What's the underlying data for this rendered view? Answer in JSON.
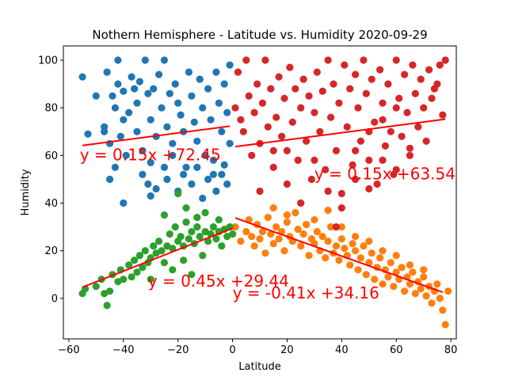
{
  "chart_data": {
    "type": "scatter",
    "title": "Nothern Hemisphere - Latitude vs. Humidity 2020-09-29",
    "xlabel": "Latitude",
    "ylabel": "Humidity",
    "xlim": [
      -62,
      82
    ],
    "ylim": [
      -17,
      106
    ],
    "x_ticks": [
      -60,
      -40,
      -20,
      0,
      20,
      40,
      60,
      80
    ],
    "y_ticks": [
      0,
      20,
      40,
      60,
      80,
      100
    ],
    "grid": false,
    "series": [
      {
        "color": "#1f77b4",
        "points": [
          [
            -55,
            93
          ],
          [
            -53,
            69
          ],
          [
            -50,
            85
          ],
          [
            -47,
            72
          ],
          [
            -47,
            70
          ],
          [
            -46,
            95
          ],
          [
            -45,
            65
          ],
          [
            -44,
            85
          ],
          [
            -43,
            80
          ],
          [
            -42,
            100
          ],
          [
            -42,
            90
          ],
          [
            -41,
            68
          ],
          [
            -40,
            87
          ],
          [
            -40,
            75
          ],
          [
            -39,
            60
          ],
          [
            -38,
            78
          ],
          [
            -37,
            93
          ],
          [
            -36,
            88
          ],
          [
            -35,
            82
          ],
          [
            -35,
            70
          ],
          [
            -34,
            91
          ],
          [
            -33,
            62
          ],
          [
            -32,
            100
          ],
          [
            -31,
            86
          ],
          [
            -30,
            75
          ],
          [
            -30,
            57
          ],
          [
            -29,
            88
          ],
          [
            -28,
            68
          ],
          [
            -27,
            94
          ],
          [
            -26,
            80
          ],
          [
            -25,
            100
          ],
          [
            -24,
            72
          ],
          [
            -23,
            86
          ],
          [
            -22,
            65
          ],
          [
            -21,
            90
          ],
          [
            -20,
            82
          ],
          [
            -19,
            77
          ],
          [
            -18,
            70
          ],
          [
            -17,
            55
          ],
          [
            -16,
            95
          ],
          [
            -15,
            85
          ],
          [
            -14,
            74
          ],
          [
            -13,
            66
          ],
          [
            -12,
            92
          ],
          [
            -11,
            80
          ],
          [
            -10,
            60
          ],
          [
            -9,
            88
          ],
          [
            -8,
            75
          ],
          [
            -7,
            52
          ],
          [
            -6,
            95
          ],
          [
            -5,
            82
          ],
          [
            -4,
            70
          ],
          [
            -3,
            90
          ],
          [
            -2,
            78
          ],
          [
            -1,
            65
          ],
          [
            -1,
            98
          ],
          [
            -45,
            50
          ],
          [
            -43,
            55
          ],
          [
            -40,
            40
          ],
          [
            -33,
            52
          ],
          [
            -31,
            48
          ],
          [
            -30,
            43
          ],
          [
            -28,
            46
          ],
          [
            -25,
            55
          ],
          [
            -24,
            50
          ],
          [
            -22,
            60
          ],
          [
            -20,
            45
          ],
          [
            -18,
            52
          ],
          [
            -15,
            48
          ],
          [
            -13,
            55
          ],
          [
            -11,
            42
          ],
          [
            -9,
            50
          ],
          [
            -7,
            58
          ],
          [
            -6,
            45
          ],
          [
            -4,
            52
          ],
          [
            -3,
            56
          ],
          [
            -2,
            48
          ]
        ]
      },
      {
        "color": "#ff7f0e",
        "points": [
          [
            1,
            30
          ],
          [
            3,
            24
          ],
          [
            5,
            28
          ],
          [
            6,
            33
          ],
          [
            7,
            26
          ],
          [
            8,
            22
          ],
          [
            9,
            31
          ],
          [
            10,
            25
          ],
          [
            11,
            28
          ],
          [
            12,
            19
          ],
          [
            13,
            34
          ],
          [
            14,
            27
          ],
          [
            15,
            23
          ],
          [
            16,
            30
          ],
          [
            17,
            25
          ],
          [
            18,
            28
          ],
          [
            19,
            20
          ],
          [
            20,
            32
          ],
          [
            21,
            26
          ],
          [
            22,
            24
          ],
          [
            23,
            36
          ],
          [
            24,
            29
          ],
          [
            25,
            22
          ],
          [
            26,
            27
          ],
          [
            27,
            31
          ],
          [
            28,
            18
          ],
          [
            29,
            25
          ],
          [
            30,
            23
          ],
          [
            31,
            28
          ],
          [
            32,
            20
          ],
          [
            33,
            26
          ],
          [
            34,
            17
          ],
          [
            35,
            24
          ],
          [
            36,
            30
          ],
          [
            37,
            19
          ],
          [
            38,
            22
          ],
          [
            39,
            16
          ],
          [
            40,
            25
          ],
          [
            41,
            21
          ],
          [
            42,
            18
          ],
          [
            43,
            14
          ],
          [
            44,
            23
          ],
          [
            45,
            20
          ],
          [
            46,
            12
          ],
          [
            47,
            17
          ],
          [
            48,
            22
          ],
          [
            49,
            10
          ],
          [
            50,
            15
          ],
          [
            51,
            19
          ],
          [
            52,
            8
          ],
          [
            53,
            13
          ],
          [
            54,
            17
          ],
          [
            55,
            6
          ],
          [
            56,
            12
          ],
          [
            57,
            9
          ],
          [
            58,
            15
          ],
          [
            59,
            5
          ],
          [
            60,
            11
          ],
          [
            61,
            8
          ],
          [
            62,
            13
          ],
          [
            63,
            3
          ],
          [
            64,
            9
          ],
          [
            65,
            6
          ],
          [
            66,
            11
          ],
          [
            67,
            2
          ],
          [
            68,
            7
          ],
          [
            69,
            4
          ],
          [
            70,
            9
          ],
          [
            71,
            1
          ],
          [
            72,
            5
          ],
          [
            73,
            -2
          ],
          [
            74,
            3
          ],
          [
            75,
            6
          ],
          [
            76,
            0
          ],
          [
            77,
            -5
          ],
          [
            78,
            -11
          ],
          [
            79,
            3
          ],
          [
            15,
            38
          ],
          [
            20,
            35
          ],
          [
            25,
            40
          ],
          [
            30,
            33
          ],
          [
            35,
            37
          ],
          [
            40,
            30
          ],
          [
            45,
            26
          ],
          [
            50,
            24
          ],
          [
            55,
            20
          ],
          [
            60,
            18
          ],
          [
            65,
            14
          ],
          [
            70,
            12
          ]
        ]
      },
      {
        "color": "#2ca02c",
        "points": [
          [
            -55,
            2
          ],
          [
            -54,
            4
          ],
          [
            -50,
            5
          ],
          [
            -48,
            8
          ],
          [
            -47,
            2
          ],
          [
            -46,
            -3
          ],
          [
            -45,
            3
          ],
          [
            -44,
            10
          ],
          [
            -42,
            7
          ],
          [
            -41,
            12
          ],
          [
            -40,
            8
          ],
          [
            -38,
            14
          ],
          [
            -37,
            9
          ],
          [
            -36,
            16
          ],
          [
            -35,
            11
          ],
          [
            -34,
            18
          ],
          [
            -33,
            13
          ],
          [
            -32,
            20
          ],
          [
            -31,
            15
          ],
          [
            -30,
            17
          ],
          [
            -29,
            22
          ],
          [
            -28,
            19
          ],
          [
            -27,
            24
          ],
          [
            -26,
            20
          ],
          [
            -25,
            35
          ],
          [
            -24,
            22
          ],
          [
            -23,
            27
          ],
          [
            -22,
            21
          ],
          [
            -21,
            30
          ],
          [
            -20,
            24
          ],
          [
            -19,
            26
          ],
          [
            -18,
            22
          ],
          [
            -17,
            32
          ],
          [
            -16,
            25
          ],
          [
            -15,
            28
          ],
          [
            -14,
            23
          ],
          [
            -13,
            30
          ],
          [
            -12,
            26
          ],
          [
            -11,
            18
          ],
          [
            -10,
            28
          ],
          [
            -9,
            24
          ],
          [
            -8,
            27
          ],
          [
            -7,
            30
          ],
          [
            -6,
            25
          ],
          [
            -5,
            28
          ],
          [
            -4,
            22
          ],
          [
            -3,
            29
          ],
          [
            -2,
            26
          ],
          [
            -1,
            30
          ],
          [
            0,
            27
          ],
          [
            -20,
            44
          ],
          [
            -17,
            38
          ],
          [
            -13,
            34
          ],
          [
            -10,
            36
          ],
          [
            -5,
            33
          ],
          [
            -30,
            8
          ],
          [
            -22,
            12
          ],
          [
            -15,
            10
          ],
          [
            -25,
            15
          ],
          [
            -18,
            16
          ]
        ]
      },
      {
        "color": "#d62728",
        "points": [
          [
            1,
            80
          ],
          [
            2,
            95
          ],
          [
            3,
            75
          ],
          [
            4,
            70
          ],
          [
            5,
            100
          ],
          [
            6,
            85
          ],
          [
            7,
            60
          ],
          [
            8,
            78
          ],
          [
            9,
            90
          ],
          [
            10,
            65
          ],
          [
            11,
            82
          ],
          [
            12,
            100
          ],
          [
            13,
            72
          ],
          [
            14,
            88
          ],
          [
            15,
            55
          ],
          [
            16,
            76
          ],
          [
            17,
            93
          ],
          [
            18,
            68
          ],
          [
            19,
            84
          ],
          [
            20,
            62
          ],
          [
            21,
            97
          ],
          [
            22,
            74
          ],
          [
            23,
            88
          ],
          [
            24,
            58
          ],
          [
            25,
            80
          ],
          [
            26,
            92
          ],
          [
            27,
            66
          ],
          [
            28,
            85
          ],
          [
            29,
            50
          ],
          [
            30,
            78
          ],
          [
            31,
            95
          ],
          [
            32,
            70
          ],
          [
            33,
            87
          ],
          [
            34,
            54
          ],
          [
            35,
            100
          ],
          [
            36,
            76
          ],
          [
            37,
            90
          ],
          [
            38,
            62
          ],
          [
            39,
            82
          ],
          [
            40,
            44
          ],
          [
            41,
            98
          ],
          [
            42,
            72
          ],
          [
            43,
            88
          ],
          [
            44,
            56
          ],
          [
            45,
            94
          ],
          [
            46,
            80
          ],
          [
            47,
            66
          ],
          [
            48,
            100
          ],
          [
            49,
            86
          ],
          [
            50,
            58
          ],
          [
            51,
            92
          ],
          [
            52,
            74
          ],
          [
            53,
            48
          ],
          [
            54,
            96
          ],
          [
            55,
            82
          ],
          [
            56,
            64
          ],
          [
            57,
            90
          ],
          [
            58,
            70
          ],
          [
            59,
            52
          ],
          [
            60,
            100
          ],
          [
            61,
            84
          ],
          [
            62,
            68
          ],
          [
            63,
            94
          ],
          [
            64,
            78
          ],
          [
            65,
            60
          ],
          [
            66,
            98
          ],
          [
            67,
            86
          ],
          [
            68,
            72
          ],
          [
            69,
            92
          ],
          [
            70,
            80
          ],
          [
            71,
            66
          ],
          [
            72,
            96
          ],
          [
            73,
            84
          ],
          [
            74,
            88
          ],
          [
            75,
            90
          ],
          [
            76,
            98
          ],
          [
            77,
            77
          ],
          [
            78,
            100
          ],
          [
            10,
            45
          ],
          [
            15,
            62
          ],
          [
            20,
            48
          ],
          [
            25,
            40
          ],
          [
            30,
            58
          ],
          [
            35,
            45
          ],
          [
            40,
            38
          ],
          [
            45,
            50
          ],
          [
            50,
            46
          ],
          [
            55,
            58
          ],
          [
            60,
            54
          ],
          [
            65,
            63
          ],
          [
            45,
            62
          ],
          [
            50,
            70
          ],
          [
            55,
            75
          ],
          [
            60,
            80
          ],
          [
            38,
            30
          ]
        ]
      }
    ],
    "regression_lines": [
      {
        "x1": -55,
        "x2": -1,
        "slope": 0.15,
        "intercept": 72.45,
        "label": "y = 0.15x +72.45",
        "label_x": -56,
        "label_y": 58
      },
      {
        "x1": 1,
        "x2": 78,
        "slope": 0.15,
        "intercept": 63.54,
        "label": "y = 0.15x +63.54",
        "label_x": 30,
        "label_y": 50
      },
      {
        "x1": -55,
        "x2": 0,
        "slope": 0.45,
        "intercept": 29.44,
        "label": "y = 0.45x +29.44",
        "label_x": -31,
        "label_y": 5
      },
      {
        "x1": 1,
        "x2": 77,
        "slope": -0.41,
        "intercept": 34.16,
        "label": "y = -0.41x +34.16",
        "label_x": 0,
        "label_y": 0
      }
    ],
    "line_color": "#ff0000"
  }
}
